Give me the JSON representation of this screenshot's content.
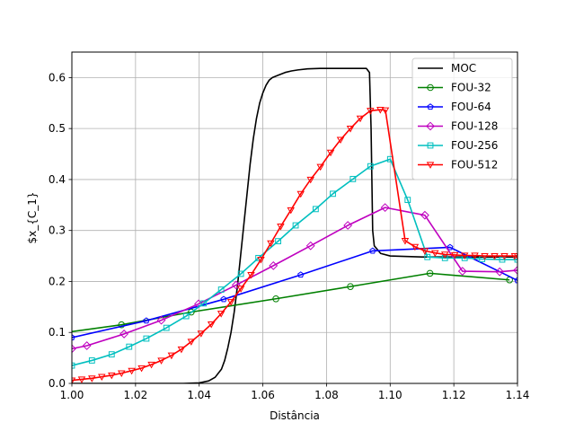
{
  "chart_data": {
    "type": "line",
    "xlabel": "Distância",
    "ylabel": "$x_{C_1}",
    "xlim": [
      1.0,
      1.14
    ],
    "ylim": [
      0.0,
      0.65
    ],
    "grid": true,
    "legend_position": "top-right",
    "x_ticks": [
      1.0,
      1.02,
      1.04,
      1.06,
      1.08,
      1.1,
      1.12,
      1.14
    ],
    "x_tick_labels": [
      "1.00",
      "1.02",
      "1.04",
      "1.06",
      "1.08",
      "1.10",
      "1.12",
      "1.14"
    ],
    "y_ticks": [
      0.0,
      0.1,
      0.2,
      0.3,
      0.4,
      0.5,
      0.6
    ],
    "y_tick_labels": [
      "0.0",
      "0.1",
      "0.2",
      "0.3",
      "0.4",
      "0.5",
      "0.6"
    ],
    "series": [
      {
        "name": "MOC",
        "color": "#000000",
        "marker": "none",
        "x": [
          1.0,
          1.035,
          1.04,
          1.043,
          1.045,
          1.047,
          1.048,
          1.049,
          1.05,
          1.051,
          1.052,
          1.053,
          1.054,
          1.055,
          1.056,
          1.057,
          1.058,
          1.059,
          1.06,
          1.061,
          1.062,
          1.063,
          1.065,
          1.067,
          1.069,
          1.071,
          1.074,
          1.078,
          1.082,
          1.088,
          1.0925,
          1.0935,
          1.094,
          1.0945,
          1.095,
          1.097,
          1.1,
          1.11,
          1.14
        ],
        "y": [
          0.0,
          0.0,
          0.001,
          0.005,
          0.012,
          0.028,
          0.045,
          0.07,
          0.1,
          0.14,
          0.19,
          0.25,
          0.31,
          0.37,
          0.43,
          0.48,
          0.52,
          0.55,
          0.57,
          0.585,
          0.595,
          0.6,
          0.605,
          0.61,
          0.613,
          0.615,
          0.617,
          0.618,
          0.618,
          0.618,
          0.618,
          0.61,
          0.5,
          0.3,
          0.27,
          0.255,
          0.25,
          0.248,
          0.248
        ]
      },
      {
        "name": "FOU-32",
        "color": "#008000",
        "marker": "circle",
        "x": [
          0.9959,
          1.0156,
          1.0375,
          1.0641,
          1.0875,
          1.1125,
          1.1375
        ],
        "y": [
          0.098,
          0.115,
          0.14,
          0.166,
          0.19,
          0.216,
          0.203
        ]
      },
      {
        "name": "FOU-64",
        "color": "#0000ff",
        "marker": "pentagon",
        "x": [
          1.0,
          1.0234,
          1.0477,
          1.0719,
          1.0945,
          1.1188,
          1.14
        ],
        "y": [
          0.09,
          0.123,
          0.165,
          0.213,
          0.26,
          0.267,
          0.202
        ]
      },
      {
        "name": "FOU-128",
        "color": "#bf00bf",
        "marker": "diamond",
        "x": [
          1.0,
          1.0047,
          1.0164,
          1.0281,
          1.0398,
          1.0516,
          1.0633,
          1.075,
          1.0867,
          1.0984,
          1.1109,
          1.1227,
          1.1344,
          1.14
        ],
        "y": [
          0.068,
          0.074,
          0.097,
          0.124,
          0.156,
          0.193,
          0.231,
          0.27,
          0.31,
          0.345,
          0.33,
          0.22,
          0.219,
          0.222
        ]
      },
      {
        "name": "FOU-256",
        "color": "#00bfbf",
        "marker": "square",
        "x": [
          1.0,
          1.0063,
          1.0125,
          1.018,
          1.0234,
          1.0297,
          1.0359,
          1.0414,
          1.0469,
          1.0531,
          1.0586,
          1.0648,
          1.0703,
          1.0766,
          1.082,
          1.0883,
          1.0938,
          1.1,
          1.1055,
          1.1117,
          1.1172,
          1.1234,
          1.1289,
          1.1352,
          1.14
        ],
        "y": [
          0.035,
          0.045,
          0.057,
          0.072,
          0.088,
          0.109,
          0.132,
          0.157,
          0.184,
          0.215,
          0.246,
          0.279,
          0.31,
          0.342,
          0.372,
          0.401,
          0.426,
          0.44,
          0.36,
          0.248,
          0.246,
          0.246,
          0.244,
          0.243,
          0.243
        ]
      },
      {
        "name": "FOU-512",
        "color": "#ff0000",
        "marker": "triangle_down",
        "x": [
          1.0,
          1.0031,
          1.0063,
          1.0094,
          1.0125,
          1.0156,
          1.0188,
          1.0219,
          1.025,
          1.0281,
          1.0313,
          1.0344,
          1.0375,
          1.0406,
          1.0438,
          1.0469,
          1.05,
          1.0531,
          1.0563,
          1.0594,
          1.0625,
          1.0656,
          1.0688,
          1.0719,
          1.075,
          1.0781,
          1.0813,
          1.0844,
          1.0875,
          1.0906,
          1.0938,
          1.0969,
          1.0985,
          1.1047,
          1.1078,
          1.1109,
          1.1141,
          1.1172,
          1.1203,
          1.1234,
          1.1266,
          1.1297,
          1.1328,
          1.1359,
          1.1391,
          1.14
        ],
        "y": [
          0.006,
          0.008,
          0.01,
          0.013,
          0.016,
          0.02,
          0.025,
          0.03,
          0.037,
          0.045,
          0.055,
          0.067,
          0.082,
          0.098,
          0.116,
          0.137,
          0.16,
          0.186,
          0.213,
          0.243,
          0.275,
          0.308,
          0.34,
          0.372,
          0.4,
          0.425,
          0.453,
          0.478,
          0.5,
          0.52,
          0.535,
          0.537,
          0.536,
          0.28,
          0.268,
          0.26,
          0.256,
          0.253,
          0.252,
          0.251,
          0.251,
          0.25,
          0.25,
          0.25,
          0.25,
          0.25
        ]
      }
    ]
  }
}
